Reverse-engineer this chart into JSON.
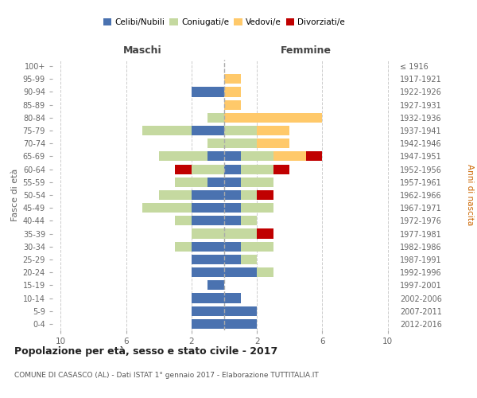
{
  "age_groups": [
    "0-4",
    "5-9",
    "10-14",
    "15-19",
    "20-24",
    "25-29",
    "30-34",
    "35-39",
    "40-44",
    "45-49",
    "50-54",
    "55-59",
    "60-64",
    "65-69",
    "70-74",
    "75-79",
    "80-84",
    "85-89",
    "90-94",
    "95-99",
    "100+"
  ],
  "birth_years": [
    "2012-2016",
    "2007-2011",
    "2002-2006",
    "1997-2001",
    "1992-1996",
    "1987-1991",
    "1982-1986",
    "1977-1981",
    "1972-1976",
    "1967-1971",
    "1962-1966",
    "1957-1961",
    "1952-1956",
    "1947-1951",
    "1942-1946",
    "1937-1941",
    "1932-1936",
    "1927-1931",
    "1922-1926",
    "1917-1921",
    "≤ 1916"
  ],
  "maschi": {
    "celibi": [
      2,
      2,
      2,
      1,
      2,
      2,
      2,
      0,
      2,
      2,
      2,
      1,
      0,
      1,
      0,
      2,
      0,
      0,
      2,
      0,
      0
    ],
    "coniugati": [
      0,
      0,
      0,
      0,
      0,
      0,
      1,
      2,
      1,
      3,
      2,
      2,
      2,
      3,
      1,
      3,
      1,
      0,
      0,
      0,
      0
    ],
    "vedovi": [
      0,
      0,
      0,
      0,
      0,
      0,
      0,
      0,
      0,
      0,
      0,
      0,
      0,
      0,
      0,
      0,
      0,
      0,
      0,
      0,
      0
    ],
    "divorziati": [
      0,
      0,
      0,
      0,
      0,
      0,
      0,
      0,
      0,
      0,
      0,
      0,
      1,
      0,
      0,
      0,
      0,
      0,
      0,
      0,
      0
    ]
  },
  "femmine": {
    "nubili": [
      2,
      2,
      1,
      0,
      2,
      1,
      1,
      0,
      1,
      1,
      1,
      1,
      1,
      1,
      0,
      0,
      0,
      0,
      0,
      0,
      0
    ],
    "coniugate": [
      0,
      0,
      0,
      0,
      1,
      1,
      2,
      2,
      1,
      2,
      1,
      2,
      2,
      2,
      2,
      2,
      0,
      0,
      0,
      0,
      0
    ],
    "vedove": [
      0,
      0,
      0,
      0,
      0,
      0,
      0,
      0,
      0,
      0,
      0,
      0,
      0,
      2,
      2,
      2,
      6,
      1,
      1,
      1,
      0
    ],
    "divorziate": [
      0,
      0,
      0,
      0,
      0,
      0,
      0,
      1,
      0,
      0,
      1,
      0,
      1,
      1,
      0,
      0,
      0,
      0,
      0,
      0,
      0
    ]
  },
  "color_celibi": "#4a72b0",
  "color_coniugati": "#c5d9a0",
  "color_vedovi": "#ffc96a",
  "color_divorziati": "#c00000",
  "title": "Popolazione per età, sesso e stato civile - 2017",
  "subtitle": "COMUNE DI CASASCO (AL) - Dati ISTAT 1° gennaio 2017 - Elaborazione TUTTITALIA.IT",
  "xlabel_left": "Maschi",
  "xlabel_right": "Femmine",
  "ylabel_left": "Fasce di età",
  "ylabel_right": "Anni di nascita",
  "xtick_labels": [
    "10",
    "6",
    "2",
    "2",
    "6",
    "10"
  ],
  "xtick_positions": [
    -10,
    -6,
    -2,
    2,
    6,
    10
  ],
  "xlim": [
    -10.5,
    10.5
  ],
  "bg_color": "#ffffff",
  "grid_color": "#cccccc",
  "grid_positions": [
    -10,
    -6,
    -2,
    2,
    6,
    10
  ]
}
